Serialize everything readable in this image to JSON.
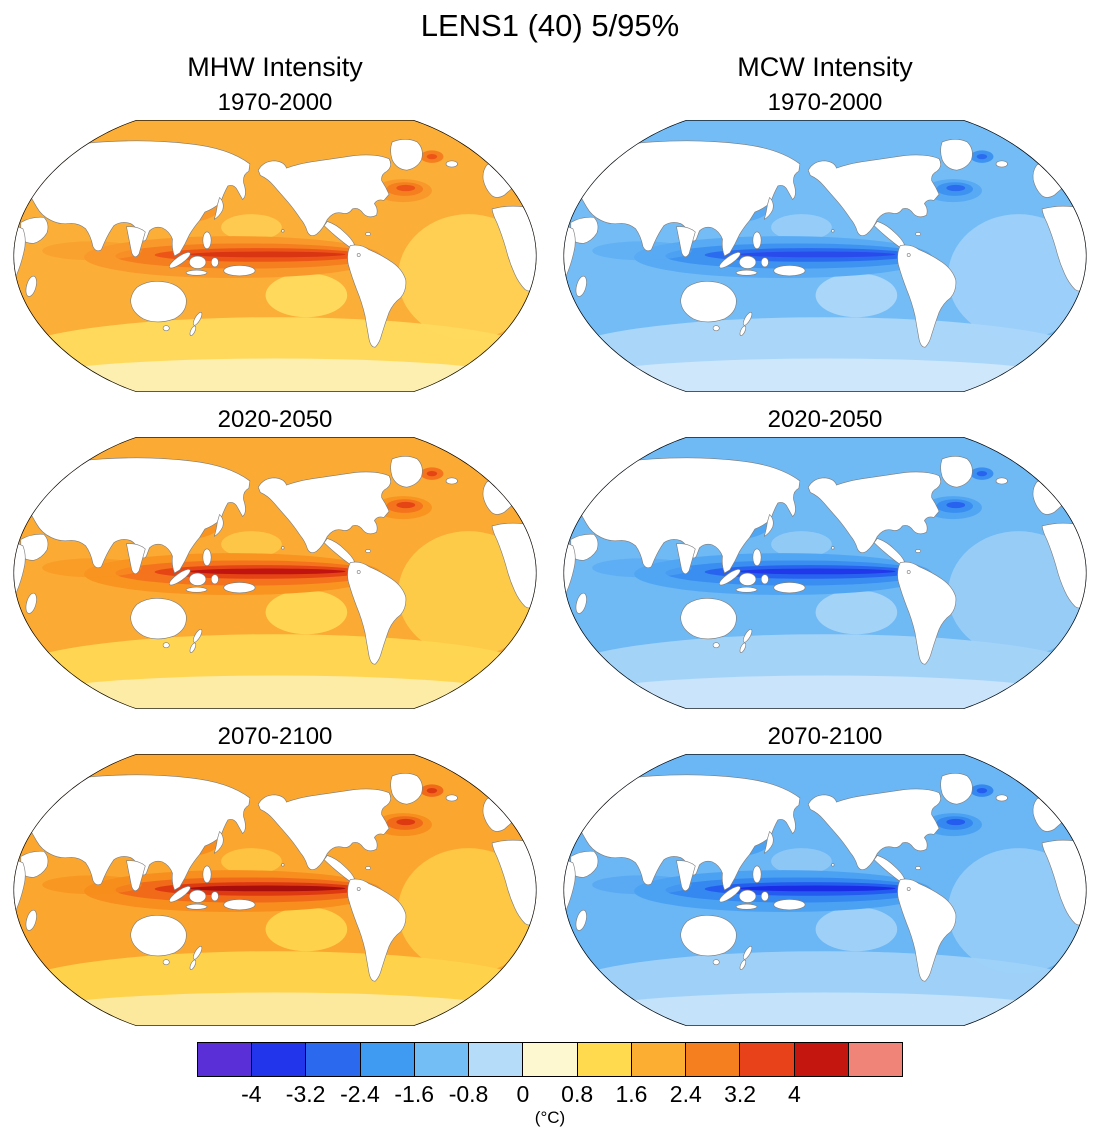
{
  "figure": {
    "title": "LENS1 (40) 5/95%"
  },
  "columns": [
    {
      "label": "MHW Intensity"
    },
    {
      "label": "MCW Intensity"
    }
  ],
  "panels": [
    {
      "metric": "MHW Intensity",
      "period": "1970-2000"
    },
    {
      "metric": "MCW Intensity",
      "period": "1970-2000"
    },
    {
      "metric": "MHW Intensity",
      "period": "2020-2050"
    },
    {
      "metric": "MCW Intensity",
      "period": "2020-2050"
    },
    {
      "metric": "MHW Intensity",
      "period": "2070-2100"
    },
    {
      "metric": "MCW Intensity",
      "period": "2070-2100"
    }
  ],
  "colorbar": {
    "unit": "(°C)",
    "ticks": [
      "-4",
      "-3.2",
      "-2.4",
      "-1.6",
      "-0.8",
      "0",
      "0.8",
      "1.6",
      "2.4",
      "3.2",
      "4"
    ],
    "colors": [
      "#5A2FD8",
      "#2335EA",
      "#2B6AEF",
      "#3F9AF2",
      "#74BEF6",
      "#B5DDFA",
      "#FDF8CF",
      "#FFD94E",
      "#FCAE32",
      "#F57E1E",
      "#E8421A",
      "#C4150E",
      "#F08478"
    ]
  },
  "palettes": {
    "warm": [
      {
        "base": "#FBAE38",
        "light": "#FFD95C",
        "light2": "#FDEFB0",
        "mid": "#F9992B",
        "band": "#F57E1E",
        "core": "#EC5517",
        "core2": "#D93513"
      },
      {
        "base": "#FBAA33",
        "light": "#FFD552",
        "light2": "#FDECA6",
        "mid": "#F8941F",
        "band": "#F4731C",
        "core": "#E54415",
        "core2": "#C01410"
      },
      {
        "base": "#FBA72F",
        "light": "#FFD24C",
        "light2": "#FDE99E",
        "mid": "#F78E1D",
        "band": "#F06A1A",
        "core": "#DE3A12",
        "core2": "#A80E0C"
      }
    ],
    "cool": [
      {
        "base": "#74BCF5",
        "light": "#A9D6F9",
        "light2": "#CFE7FB",
        "mid": "#57AAF3",
        "band": "#3E93F1",
        "core": "#2B6BEF",
        "core2": "#2A4BEC"
      },
      {
        "base": "#6FB9F4",
        "light": "#A4D3F8",
        "light2": "#C9E4FB",
        "mid": "#51A6F3",
        "band": "#3A8EF1",
        "core": "#2763EE",
        "core2": "#2038EA"
      },
      {
        "base": "#6BB6F4",
        "light": "#9FD1F8",
        "light2": "#C4E2FA",
        "mid": "#4CA2F2",
        "band": "#3588F0",
        "core": "#235CEE",
        "core2": "#1B2CE6"
      }
    ]
  }
}
